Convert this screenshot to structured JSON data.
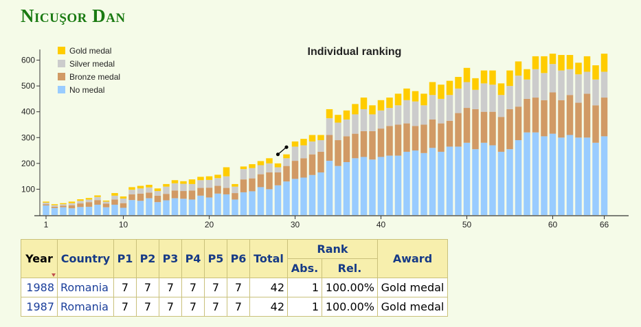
{
  "page": {
    "title": "Nicuşor Dan"
  },
  "chart_data": {
    "type": "bar",
    "stacked": true,
    "title": "Individual ranking",
    "xlabel": "",
    "ylabel": "",
    "ylim": [
      0,
      660
    ],
    "yticks": [
      100,
      200,
      300,
      400,
      500,
      600
    ],
    "xticks": [
      1,
      10,
      20,
      30,
      40,
      50,
      60,
      66
    ],
    "grid": false,
    "legend_position": "top-left",
    "categories": [
      1,
      2,
      3,
      4,
      5,
      6,
      7,
      8,
      9,
      10,
      11,
      12,
      13,
      14,
      15,
      16,
      17,
      18,
      19,
      20,
      21,
      22,
      23,
      24,
      25,
      26,
      27,
      28,
      29,
      30,
      31,
      32,
      33,
      34,
      35,
      36,
      37,
      38,
      39,
      40,
      41,
      42,
      43,
      44,
      45,
      46,
      47,
      48,
      49,
      50,
      51,
      52,
      53,
      54,
      55,
      56,
      57,
      58,
      59,
      60,
      61,
      62,
      63,
      64,
      65,
      66
    ],
    "series": [
      {
        "name": "No medal",
        "color": "#99ccff",
        "values": [
          37,
          27,
          30,
          26,
          31,
          32,
          40,
          30,
          40,
          28,
          58,
          55,
          65,
          50,
          57,
          65,
          63,
          60,
          75,
          68,
          83,
          80,
          60,
          88,
          92,
          108,
          100,
          115,
          130,
          140,
          145,
          155,
          165,
          210,
          190,
          205,
          220,
          225,
          215,
          225,
          230,
          230,
          245,
          250,
          240,
          260,
          245,
          265,
          265,
          280,
          255,
          280,
          270,
          245,
          255,
          290,
          320,
          320,
          305,
          315,
          300,
          310,
          300,
          300,
          280,
          305
        ]
      },
      {
        "name": "Bronze medal",
        "color": "#d19a65",
        "values": [
          5,
          5,
          6,
          12,
          14,
          18,
          18,
          14,
          20,
          18,
          22,
          28,
          22,
          25,
          25,
          30,
          30,
          35,
          30,
          38,
          30,
          25,
          25,
          50,
          50,
          50,
          65,
          50,
          60,
          70,
          75,
          80,
          80,
          100,
          100,
          100,
          95,
          100,
          110,
          110,
          115,
          120,
          110,
          95,
          110,
          110,
          110,
          100,
          130,
          135,
          155,
          120,
          130,
          135,
          155,
          130,
          130,
          135,
          140,
          160,
          145,
          155,
          135,
          170,
          145,
          150
        ]
      },
      {
        "name": "Silver medal",
        "color": "#cccccc",
        "values": [
          6,
          6,
          6,
          8,
          10,
          10,
          12,
          8,
          15,
          18,
          18,
          20,
          20,
          18,
          28,
          28,
          28,
          25,
          30,
          30,
          30,
          45,
          25,
          40,
          40,
          35,
          35,
          20,
          30,
          55,
          50,
          50,
          45,
          65,
          68,
          65,
          75,
          85,
          65,
          70,
          70,
          75,
          90,
          95,
          75,
          95,
          95,
          100,
          95,
          100,
          75,
          110,
          105,
          85,
          90,
          120,
          75,
          110,
          105,
          110,
          115,
          100,
          110,
          85,
          100,
          100
        ]
      },
      {
        "name": "Gold medal",
        "color": "#ffcc00",
        "values": [
          4,
          4,
          4,
          6,
          6,
          6,
          6,
          4,
          10,
          8,
          10,
          10,
          10,
          10,
          10,
          12,
          10,
          18,
          13,
          14,
          13,
          35,
          10,
          10,
          15,
          16,
          20,
          15,
          15,
          20,
          25,
          25,
          20,
          35,
          30,
          35,
          40,
          45,
          35,
          40,
          40,
          45,
          45,
          40,
          45,
          50,
          55,
          55,
          45,
          55,
          45,
          50,
          55,
          45,
          60,
          55,
          40,
          50,
          65,
          40,
          60,
          55,
          45,
          60,
          55,
          70
        ]
      }
    ],
    "annotation_line": {
      "from_x": 28,
      "to_x": 29,
      "from_y": 235,
      "to_y": 263
    }
  },
  "table": {
    "headers": {
      "year": "Year",
      "country": "Country",
      "p1": "P1",
      "p2": "P2",
      "p3": "P3",
      "p4": "P4",
      "p5": "P5",
      "p6": "P6",
      "total": "Total",
      "rank": "Rank",
      "abs": "Abs.",
      "rel": "Rel.",
      "award": "Award"
    },
    "rows": [
      {
        "year": "1988",
        "country": "Romania",
        "p1": "7",
        "p2": "7",
        "p3": "7",
        "p4": "7",
        "p5": "7",
        "p6": "7",
        "total": "42",
        "abs": "1",
        "rel": "100.00%",
        "award": "Gold medal"
      },
      {
        "year": "1987",
        "country": "Romania",
        "p1": "7",
        "p2": "7",
        "p3": "7",
        "p4": "7",
        "p5": "7",
        "p6": "7",
        "total": "42",
        "abs": "1",
        "rel": "100.00%",
        "award": "Gold medal"
      }
    ]
  }
}
